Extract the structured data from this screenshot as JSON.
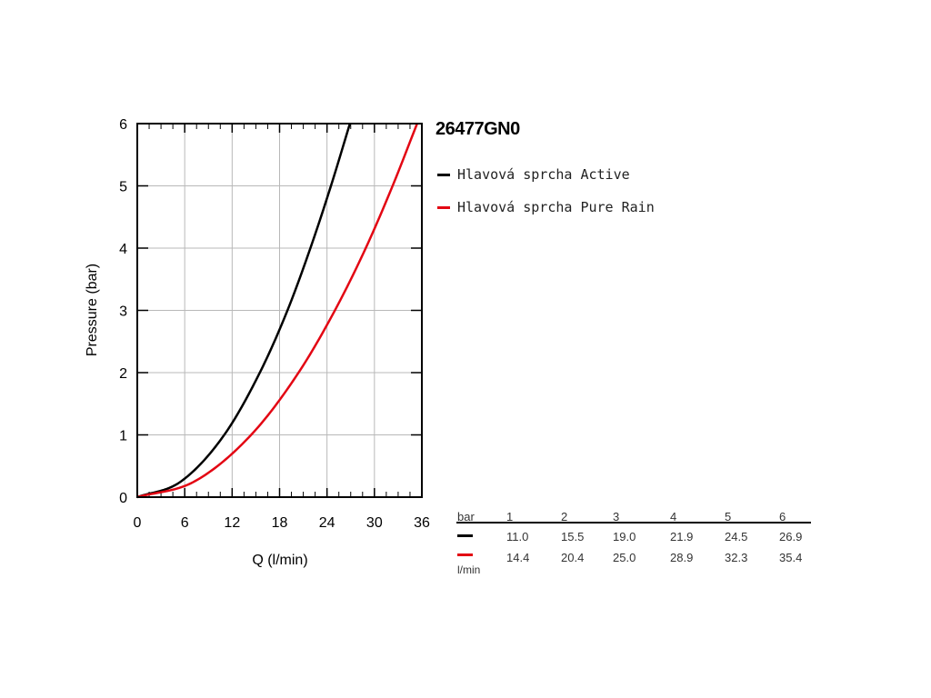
{
  "product": {
    "code": "26477GN0"
  },
  "legend": [
    {
      "label": "Hlavová sprcha Active",
      "color": "#000000"
    },
    {
      "label": "Hlavová sprcha Pure Rain",
      "color": "#e30613"
    }
  ],
  "table": {
    "header_label": "bar",
    "unit_label": "l/min",
    "pressures": [
      "1",
      "2",
      "3",
      "4",
      "5",
      "6"
    ],
    "rows": [
      {
        "color": "#000000",
        "values": [
          "11.0",
          "15.5",
          "19.0",
          "21.9",
          "24.5",
          "26.9"
        ]
      },
      {
        "color": "#e30613",
        "values": [
          "14.4",
          "20.4",
          "25.0",
          "28.9",
          "32.3",
          "35.4"
        ]
      }
    ]
  },
  "chart_data": {
    "type": "line",
    "title": "26477GN0",
    "xlabel": "Q (l/min)",
    "ylabel": "Pressure (bar)",
    "xlim": [
      0,
      36
    ],
    "ylim": [
      0,
      6
    ],
    "xticks": [
      "0",
      "6",
      "12",
      "18",
      "24",
      "30",
      "36"
    ],
    "yticks": [
      "0",
      "1",
      "2",
      "3",
      "4",
      "5",
      "6"
    ],
    "grid": true,
    "legend_position": "right",
    "series": [
      {
        "name": "Hlavová sprcha Active",
        "color": "#000000",
        "x": [
          0,
          11.0,
          15.5,
          19.0,
          21.9,
          24.5,
          26.9
        ],
        "y": [
          0,
          1,
          2,
          3,
          4,
          5,
          6
        ]
      },
      {
        "name": "Hlavová sprcha Pure Rain",
        "color": "#e30613",
        "x": [
          0,
          14.4,
          20.4,
          25.0,
          28.9,
          32.3,
          35.4
        ],
        "y": [
          0,
          1,
          2,
          3,
          4,
          5,
          6
        ]
      }
    ]
  }
}
